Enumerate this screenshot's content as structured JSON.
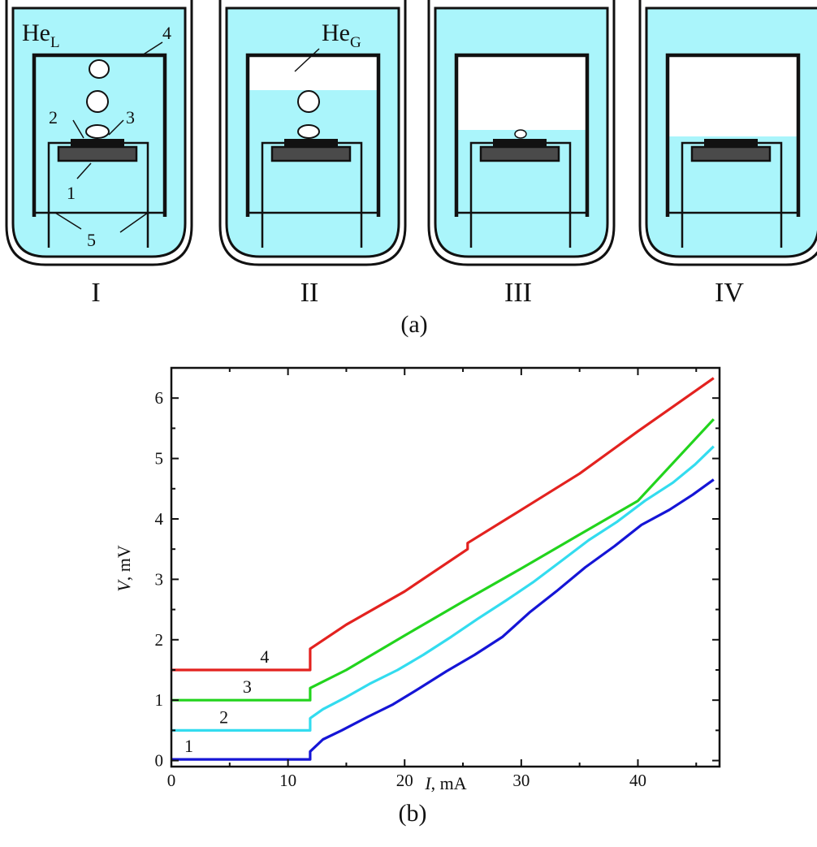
{
  "panel_a": {
    "label": "(a)",
    "he_liquid": {
      "main": "He",
      "sub": "L"
    },
    "he_gas": {
      "main": "He",
      "sub": "G"
    },
    "callouts": [
      "1",
      "2",
      "3",
      "4",
      "5"
    ],
    "stages": [
      "I",
      "II",
      "III",
      "IV"
    ],
    "colors": {
      "liquid": "#aaf5fb",
      "outline": "#111111",
      "heater": "#4a4a4a"
    }
  },
  "panel_b": {
    "label": "(b)"
  },
  "chart_data": {
    "type": "line",
    "xlabel_italic": "I",
    "xlabel_rest": ", mA",
    "ylabel_italic": "V",
    "ylabel_rest": ", mV",
    "xlim": [
      0,
      47
    ],
    "ylim": [
      -0.1,
      6.5
    ],
    "xticks": [
      "0",
      "10",
      "20",
      "30",
      "40"
    ],
    "yticks": [
      "0",
      "1",
      "2",
      "3",
      "4",
      "5",
      "6"
    ],
    "grid": false,
    "series": [
      {
        "name": "1",
        "color": "#1515d6",
        "x": [
          0,
          11.9,
          11.9,
          13,
          14.6,
          16.8,
          19,
          21.3,
          23.6,
          26,
          28.4,
          30.7,
          33,
          35.5,
          38,
          40.3,
          42.7,
          44.7,
          46.5
        ],
        "y": [
          0.02,
          0.02,
          0.15,
          0.35,
          0.5,
          0.72,
          0.93,
          1.2,
          1.48,
          1.75,
          2.05,
          2.45,
          2.8,
          3.2,
          3.55,
          3.9,
          4.15,
          4.4,
          4.65
        ]
      },
      {
        "name": "2",
        "color": "#33dcef",
        "x": [
          0,
          11.9,
          11.9,
          13,
          15,
          17,
          19.4,
          21.6,
          24,
          26.3,
          28.7,
          31,
          33.4,
          35.8,
          38.2,
          40.6,
          43,
          44.9,
          46.5
        ],
        "y": [
          0.5,
          0.5,
          0.7,
          0.85,
          1.05,
          1.27,
          1.5,
          1.75,
          2.05,
          2.35,
          2.65,
          2.95,
          3.3,
          3.65,
          3.95,
          4.3,
          4.6,
          4.9,
          5.2
        ]
      },
      {
        "name": "3",
        "color": "#22d41d",
        "x": [
          0,
          11.9,
          11.9,
          15,
          20,
          25,
          30,
          35,
          40,
          46.5
        ],
        "y": [
          1,
          1,
          1.2,
          1.5,
          2.07,
          2.63,
          3.18,
          3.74,
          4.3,
          5.65
        ]
      },
      {
        "name": "4",
        "color": "#e3221f",
        "x": [
          0,
          11.9,
          11.9,
          15,
          20,
          25.4,
          25.4,
          30,
          35,
          40,
          46.5
        ],
        "y": [
          1.5,
          1.5,
          1.85,
          2.25,
          2.8,
          3.5,
          3.6,
          4.15,
          4.75,
          5.45,
          6.33
        ]
      }
    ]
  }
}
